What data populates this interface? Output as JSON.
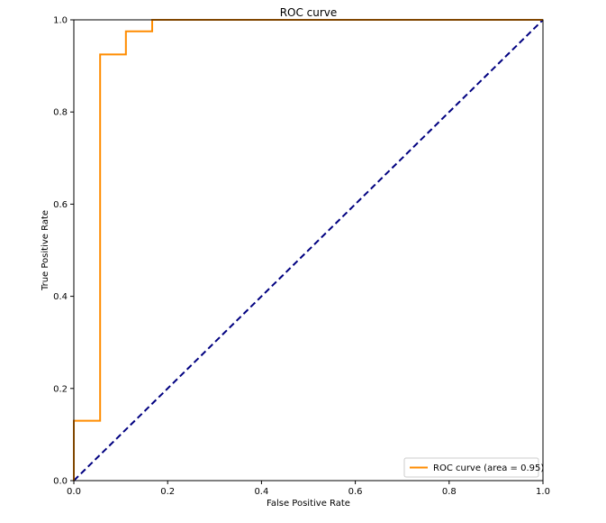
{
  "chart_data": {
    "type": "line",
    "title": "ROC curve",
    "xlabel": "False Positive Rate",
    "ylabel": "True Positive Rate",
    "xlim": [
      0.0,
      1.0
    ],
    "ylim": [
      0.0,
      1.0
    ],
    "x_ticks": [
      "0.0",
      "0.2",
      "0.4",
      "0.6",
      "0.8",
      "1.0"
    ],
    "y_ticks": [
      "0.0",
      "0.2",
      "0.4",
      "0.6",
      "0.8",
      "1.0"
    ],
    "grid": false,
    "legend_position": "lower right",
    "series": [
      {
        "name": "ROC curve (area = 0.95)",
        "color": "#ff8c00",
        "style": "solid",
        "x": [
          0.0,
          0.0,
          0.056,
          0.056,
          0.111,
          0.111,
          0.167,
          0.167,
          1.0
        ],
        "y": [
          0.0,
          0.13,
          0.13,
          0.925,
          0.925,
          0.975,
          0.975,
          1.0,
          1.0
        ]
      },
      {
        "color": "#000080",
        "style": "dashed",
        "x": [
          0.0,
          1.0
        ],
        "y": [
          0.0,
          1.0
        ]
      }
    ]
  }
}
